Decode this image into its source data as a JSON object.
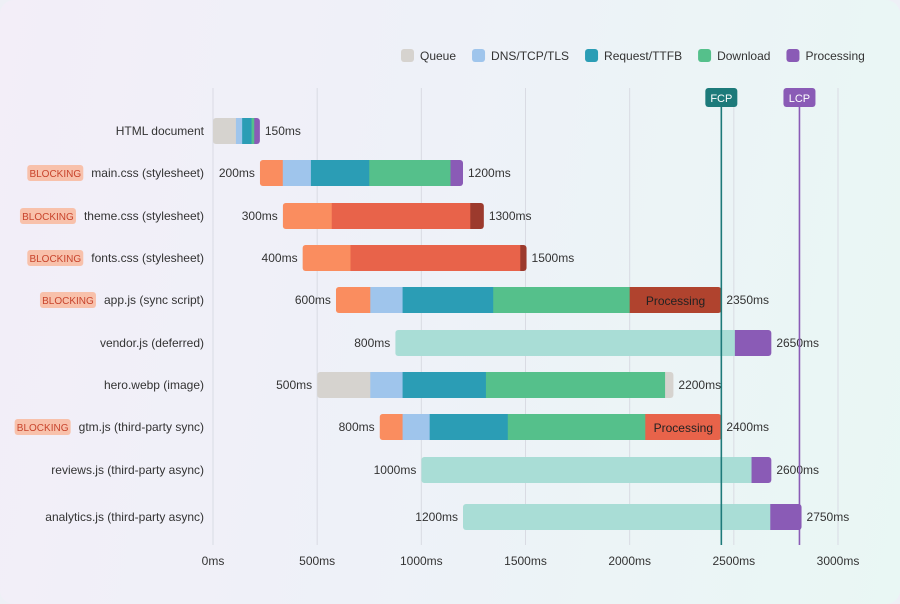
{
  "chart_data": {
    "type": "bar",
    "subtype": "waterfall",
    "xlim": [
      0,
      3000
    ],
    "x_ticks": [
      0,
      500,
      1000,
      1500,
      2000,
      2500,
      3000
    ],
    "x_tick_labels": [
      "0ms",
      "500ms",
      "1000ms",
      "1500ms",
      "2000ms",
      "2500ms",
      "3000ms"
    ],
    "grid": true,
    "legend_position": "top-right",
    "legend": [
      {
        "label": "Queue",
        "color": "#d6d3cf"
      },
      {
        "label": "DNS/TCP/TLS",
        "color": "#9fc5ec"
      },
      {
        "label": "Request/TTFB",
        "color": "#2b9db5"
      },
      {
        "label": "Download",
        "color": "#55c08b"
      },
      {
        "label": "Processing",
        "color": "#8a5bb6"
      }
    ],
    "markers": [
      {
        "label": "FCP",
        "value": 2440,
        "color": "#1d7a7a"
      },
      {
        "label": "LCP",
        "value": 2815,
        "color": "#8a5bb6"
      }
    ],
    "blocking_badge": "BLOCKING",
    "rows": [
      {
        "name": "HTML document",
        "blocking": false,
        "start_label": "",
        "end_label": "150ms",
        "segments": [
          [
            0,
            110,
            "#d6d3cf"
          ],
          [
            110,
            140,
            "#9fc5ec"
          ],
          [
            140,
            185,
            "#2b9db5"
          ],
          [
            185,
            198,
            "#55c08b"
          ],
          [
            198,
            225,
            "#8a5bb6"
          ]
        ]
      },
      {
        "name": "main.css (stylesheet)",
        "blocking": true,
        "start_label": "200ms",
        "end_label": "1200ms",
        "segments": [
          [
            225,
            335,
            "#fa8d5f"
          ],
          [
            335,
            470,
            "#9fc5ec"
          ],
          [
            470,
            750,
            "#2b9db5"
          ],
          [
            750,
            1140,
            "#55c08b"
          ],
          [
            1140,
            1200,
            "#8a5bb6"
          ]
        ]
      },
      {
        "name": "theme.css (stylesheet)",
        "blocking": true,
        "start_label": "300ms",
        "end_label": "1300ms",
        "segments": [
          [
            335,
            570,
            "#fa8d5f"
          ],
          [
            570,
            1235,
            "#e8634a"
          ],
          [
            1235,
            1300,
            "#9c3a2d"
          ]
        ]
      },
      {
        "name": "fonts.css (stylesheet)",
        "blocking": true,
        "start_label": "400ms",
        "end_label": "1500ms",
        "segments": [
          [
            430,
            660,
            "#fa8d5f"
          ],
          [
            660,
            1475,
            "#e8634a"
          ],
          [
            1475,
            1505,
            "#9c3a2d"
          ]
        ]
      },
      {
        "name": "app.js (sync script)",
        "blocking": true,
        "start_label": "600ms",
        "end_label": "2350ms",
        "segments": [
          [
            590,
            755,
            "#fa8d5f"
          ],
          [
            755,
            910,
            "#9fc5ec"
          ],
          [
            910,
            1345,
            "#2b9db5"
          ],
          [
            1345,
            2000,
            "#55c08b"
          ],
          [
            2000,
            2440,
            "#b0432e",
            "Processing"
          ]
        ]
      },
      {
        "name": "vendor.js (deferred)",
        "blocking": false,
        "start_label": "800ms",
        "end_label": "2650ms",
        "segments": [
          [
            875,
            2505,
            "#a9ddd6"
          ],
          [
            2505,
            2680,
            "#8a5bb6"
          ]
        ]
      },
      {
        "name": "hero.webp (image)",
        "blocking": false,
        "start_label": "500ms",
        "end_label": "2200ms",
        "segments": [
          [
            500,
            755,
            "#d6d3cf"
          ],
          [
            755,
            910,
            "#9fc5ec"
          ],
          [
            910,
            1310,
            "#2b9db5"
          ],
          [
            1310,
            2170,
            "#55c08b"
          ],
          [
            2170,
            2210,
            "#d6d3cf"
          ]
        ]
      },
      {
        "name": "gtm.js (third-party sync)",
        "blocking": true,
        "start_label": "800ms",
        "end_label": "2400ms",
        "segments": [
          [
            800,
            910,
            "#fa8d5f"
          ],
          [
            910,
            1040,
            "#9fc5ec"
          ],
          [
            1040,
            1415,
            "#2b9db5"
          ],
          [
            1415,
            2075,
            "#55c08b"
          ],
          [
            2075,
            2440,
            "#e8634a",
            "Processing"
          ]
        ]
      },
      {
        "name": "reviews.js (third-party async)",
        "blocking": false,
        "start_label": "1000ms",
        "end_label": "2600ms",
        "segments": [
          [
            1000,
            2585,
            "#a9ddd6"
          ],
          [
            2585,
            2680,
            "#8a5bb6"
          ]
        ]
      },
      {
        "name": "analytics.js (third-party async)",
        "blocking": false,
        "start_label": "1200ms",
        "end_label": "2750ms",
        "segments": [
          [
            1200,
            2675,
            "#a9ddd6"
          ],
          [
            2675,
            2825,
            "#8a5bb6"
          ]
        ]
      }
    ]
  }
}
